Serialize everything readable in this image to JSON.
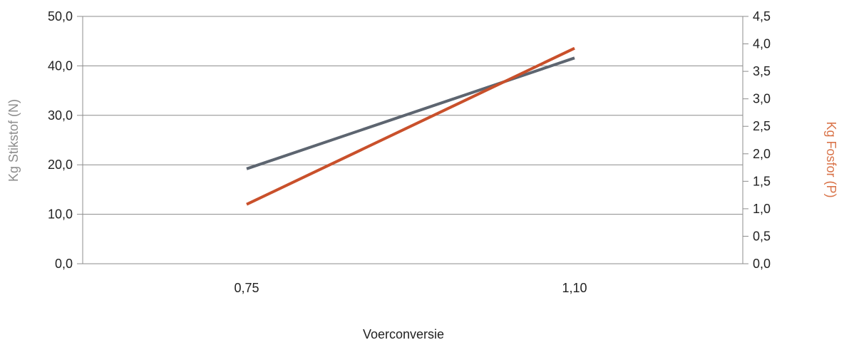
{
  "chart_data": {
    "type": "line",
    "categories": [
      "0,75",
      "1,10"
    ],
    "xlabel": "Voerconversie",
    "ylabel": "Kg Stikstof (N)",
    "y2label": "Kg Fosfor (P)",
    "ylim": [
      0,
      50
    ],
    "y2lim": [
      0,
      4.5
    ],
    "yticks": [
      "0,0",
      "10,0",
      "20,0",
      "30,0",
      "40,0",
      "50,0"
    ],
    "y2ticks": [
      "0,0",
      "0,5",
      "1,0",
      "1,5",
      "2,0",
      "2,5",
      "3,0",
      "3,5",
      "4,0",
      "4,5"
    ],
    "grid": true,
    "series": [
      {
        "axis": "left",
        "color": "#5d6570",
        "values": [
          19.2,
          41.6
        ]
      },
      {
        "axis": "right",
        "color": "#c9502b",
        "values": [
          1.08,
          3.92
        ]
      }
    ],
    "colors": {
      "ylabel": "#8c8c8c",
      "y2label": "#d9744a",
      "grid": "#8c8c8c",
      "axis": "#8c8c8c"
    }
  }
}
